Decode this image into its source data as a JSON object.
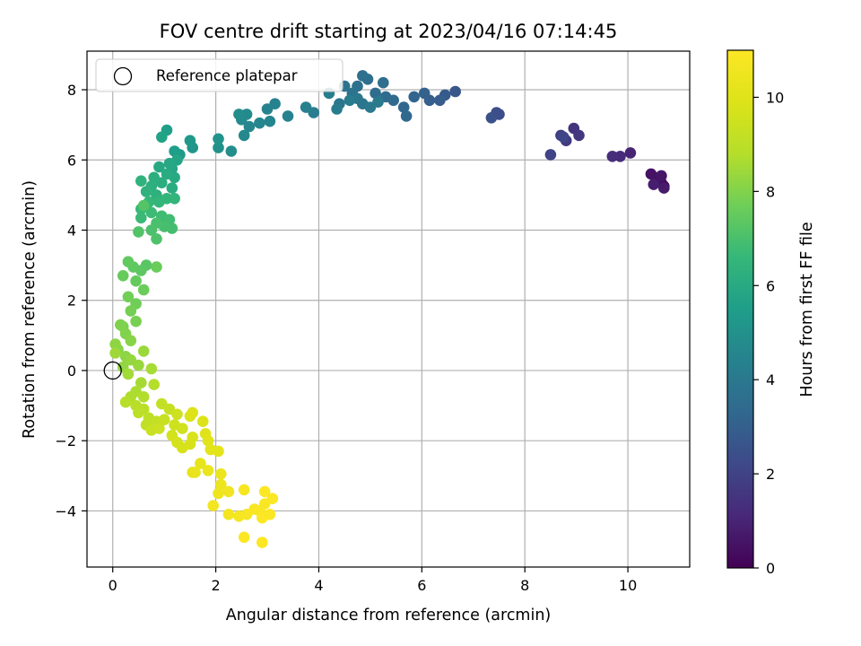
{
  "chart_data": {
    "type": "scatter",
    "title": "FOV centre drift starting at 2023/04/16 07:14:45",
    "xlabel": "Angular distance from reference (arcmin)",
    "ylabel": "Rotation from reference (arcmin)",
    "xlim": [
      -0.5,
      11.2
    ],
    "ylim": [
      -5.6,
      9.1
    ],
    "xticks": [
      0,
      2,
      4,
      6,
      8,
      10
    ],
    "yticks": [
      -4,
      -2,
      0,
      2,
      4,
      6,
      8
    ],
    "grid": true,
    "colormap": "viridis",
    "colorbar": {
      "label": "Hours from first FF file",
      "range": [
        0,
        11
      ],
      "ticks": [
        0,
        2,
        4,
        6,
        8,
        10
      ]
    },
    "legend": {
      "position": "top-left",
      "entries": [
        "Reference platepar"
      ]
    },
    "reference_point": {
      "x": 0,
      "y": 0
    },
    "points": [
      [
        10.7,
        5.25,
        0.1
      ],
      [
        10.65,
        5.35,
        0.2
      ],
      [
        10.6,
        5.5,
        0.3
      ],
      [
        10.55,
        5.4,
        0.4
      ],
      [
        10.45,
        5.6,
        0.5
      ],
      [
        10.65,
        5.55,
        0.6
      ],
      [
        10.7,
        5.2,
        0.7
      ],
      [
        10.5,
        5.3,
        0.8
      ],
      [
        10.05,
        6.2,
        1.0
      ],
      [
        9.85,
        6.1,
        1.2
      ],
      [
        9.7,
        6.1,
        1.3
      ],
      [
        8.95,
        6.9,
        1.5
      ],
      [
        9.05,
        6.7,
        1.6
      ],
      [
        8.8,
        6.55,
        1.7
      ],
      [
        8.7,
        6.7,
        1.8
      ],
      [
        8.5,
        6.15,
        2.0
      ],
      [
        8.75,
        6.65,
        2.1
      ],
      [
        7.5,
        7.3,
        2.3
      ],
      [
        7.45,
        7.35,
        2.4
      ],
      [
        7.35,
        7.2,
        2.5
      ],
      [
        6.65,
        7.95,
        2.7
      ],
      [
        6.45,
        7.85,
        2.8
      ],
      [
        6.35,
        7.7,
        2.9
      ],
      [
        6.15,
        7.7,
        3.0
      ],
      [
        6.05,
        7.9,
        3.1
      ],
      [
        5.85,
        7.8,
        3.2
      ],
      [
        5.7,
        7.25,
        3.3
      ],
      [
        5.65,
        7.5,
        3.35
      ],
      [
        5.45,
        7.7,
        3.4
      ],
      [
        5.3,
        7.8,
        3.45
      ],
      [
        5.1,
        7.9,
        3.5
      ],
      [
        5.25,
        8.2,
        3.55
      ],
      [
        4.95,
        8.3,
        3.6
      ],
      [
        4.85,
        8.4,
        3.65
      ],
      [
        4.75,
        8.1,
        3.7
      ],
      [
        4.65,
        7.9,
        3.75
      ],
      [
        4.5,
        8.1,
        3.8
      ],
      [
        4.4,
        7.6,
        3.85
      ],
      [
        4.85,
        7.6,
        3.9
      ],
      [
        4.75,
        7.75,
        3.95
      ],
      [
        5.0,
        7.5,
        4.0
      ],
      [
        5.15,
        7.65,
        4.05
      ],
      [
        4.6,
        7.7,
        4.1
      ],
      [
        4.35,
        7.45,
        4.15
      ],
      [
        4.2,
        7.9,
        4.2
      ],
      [
        3.9,
        7.35,
        4.25
      ],
      [
        3.75,
        7.5,
        4.3
      ],
      [
        3.4,
        7.25,
        4.35
      ],
      [
        3.15,
        7.6,
        4.4
      ],
      [
        3.0,
        7.45,
        4.45
      ],
      [
        3.05,
        7.1,
        4.5
      ],
      [
        2.85,
        7.05,
        4.55
      ],
      [
        2.65,
        6.95,
        4.6
      ],
      [
        2.55,
        6.7,
        4.65
      ],
      [
        2.5,
        7.15,
        4.7
      ],
      [
        2.6,
        7.3,
        4.75
      ],
      [
        2.45,
        7.3,
        4.8
      ],
      [
        2.3,
        6.25,
        4.9
      ],
      [
        2.05,
        6.35,
        5.0
      ],
      [
        2.05,
        6.6,
        5.1
      ],
      [
        1.55,
        6.35,
        5.2
      ],
      [
        1.5,
        6.55,
        5.3
      ],
      [
        1.3,
        6.15,
        5.4
      ],
      [
        1.2,
        6.25,
        5.5
      ],
      [
        1.05,
        6.85,
        5.6
      ],
      [
        0.95,
        6.65,
        5.7
      ],
      [
        1.25,
        6.0,
        5.8
      ],
      [
        1.15,
        5.75,
        5.85
      ],
      [
        1.1,
        5.9,
        5.9
      ],
      [
        0.9,
        5.8,
        5.95
      ],
      [
        1.2,
        5.5,
        6.0
      ],
      [
        1.05,
        5.6,
        6.05
      ],
      [
        1.15,
        5.2,
        6.1
      ],
      [
        0.95,
        5.35,
        6.15
      ],
      [
        0.8,
        5.5,
        6.2
      ],
      [
        0.75,
        5.25,
        6.25
      ],
      [
        0.85,
        5.0,
        6.3
      ],
      [
        0.65,
        5.1,
        6.35
      ],
      [
        0.55,
        5.4,
        6.4
      ],
      [
        1.2,
        4.9,
        6.45
      ],
      [
        1.05,
        4.9,
        6.5
      ],
      [
        0.9,
        4.8,
        6.55
      ],
      [
        0.7,
        4.8,
        6.6
      ],
      [
        0.55,
        4.6,
        6.65
      ],
      [
        0.55,
        4.35,
        6.7
      ],
      [
        0.75,
        4.5,
        6.75
      ],
      [
        0.95,
        4.4,
        6.8
      ],
      [
        1.1,
        4.3,
        6.85
      ],
      [
        1.15,
        4.05,
        6.9
      ],
      [
        1.0,
        4.1,
        6.95
      ],
      [
        0.85,
        4.2,
        7.0
      ],
      [
        0.75,
        4.0,
        7.05
      ],
      [
        0.85,
        3.75,
        7.1
      ],
      [
        0.5,
        3.95,
        7.15
      ],
      [
        0.6,
        4.7,
        7.2
      ],
      [
        0.65,
        3.0,
        7.3
      ],
      [
        0.55,
        2.85,
        7.35
      ],
      [
        0.4,
        2.95,
        7.4
      ],
      [
        0.3,
        3.1,
        7.45
      ],
      [
        0.45,
        2.55,
        7.5
      ],
      [
        0.2,
        2.7,
        7.55
      ],
      [
        0.85,
        2.95,
        7.6
      ],
      [
        0.6,
        2.3,
        7.65
      ],
      [
        0.45,
        1.9,
        7.7
      ],
      [
        0.3,
        2.1,
        7.75
      ],
      [
        0.35,
        1.7,
        7.8
      ],
      [
        0.45,
        1.4,
        7.85
      ],
      [
        0.2,
        1.25,
        7.9
      ],
      [
        0.15,
        1.3,
        7.95
      ],
      [
        0.25,
        1.05,
        8.0
      ],
      [
        0.1,
        0.6,
        8.05
      ],
      [
        0.35,
        0.85,
        8.1
      ],
      [
        0.25,
        0.4,
        8.15
      ],
      [
        0.05,
        0.75,
        8.2
      ],
      [
        0.2,
        0.1,
        8.25
      ],
      [
        0.35,
        0.3,
        8.3
      ],
      [
        0.5,
        0.15,
        8.35
      ],
      [
        0.6,
        0.55,
        8.4
      ],
      [
        0.05,
        0.5,
        8.45
      ],
      [
        0.3,
        -0.1,
        8.5
      ],
      [
        0.55,
        -0.35,
        8.55
      ],
      [
        0.75,
        0.05,
        8.6
      ],
      [
        0.45,
        -0.6,
        8.65
      ],
      [
        0.35,
        -0.75,
        8.7
      ],
      [
        0.6,
        -0.75,
        8.75
      ],
      [
        0.8,
        -0.4,
        8.8
      ],
      [
        0.25,
        -0.9,
        8.85
      ],
      [
        0.45,
        -1.0,
        8.9
      ],
      [
        0.6,
        -1.1,
        8.95
      ],
      [
        0.5,
        -1.2,
        9.0
      ],
      [
        0.7,
        -1.35,
        9.05
      ],
      [
        0.65,
        -1.55,
        9.1
      ],
      [
        0.85,
        -1.45,
        9.15
      ],
      [
        0.95,
        -0.95,
        9.2
      ],
      [
        1.1,
        -1.1,
        9.25
      ],
      [
        1.0,
        -1.4,
        9.3
      ],
      [
        0.75,
        -1.7,
        9.35
      ],
      [
        0.9,
        -1.65,
        9.4
      ],
      [
        1.25,
        -1.25,
        9.45
      ],
      [
        1.2,
        -1.55,
        9.5
      ],
      [
        1.35,
        -1.65,
        9.55
      ],
      [
        1.15,
        -1.85,
        9.6
      ],
      [
        1.25,
        -2.05,
        9.65
      ],
      [
        1.35,
        -2.2,
        9.7
      ],
      [
        1.5,
        -2.1,
        9.75
      ],
      [
        1.55,
        -1.9,
        9.8
      ],
      [
        1.5,
        -1.3,
        9.85
      ],
      [
        1.55,
        -1.2,
        9.9
      ],
      [
        1.75,
        -1.45,
        9.95
      ],
      [
        1.8,
        -1.8,
        10.0
      ],
      [
        1.85,
        -2.0,
        10.05
      ],
      [
        1.9,
        -2.25,
        10.1
      ],
      [
        2.05,
        -2.3,
        10.15
      ],
      [
        1.7,
        -2.65,
        10.2
      ],
      [
        1.55,
        -2.9,
        10.25
      ],
      [
        1.6,
        -2.9,
        10.3
      ],
      [
        1.85,
        -2.85,
        10.35
      ],
      [
        2.1,
        -2.95,
        10.4
      ],
      [
        2.1,
        -3.25,
        10.45
      ],
      [
        2.05,
        -3.5,
        10.5
      ],
      [
        2.25,
        -3.45,
        10.55
      ],
      [
        1.95,
        -3.85,
        10.6
      ],
      [
        2.25,
        -4.1,
        10.65
      ],
      [
        2.45,
        -4.15,
        10.7
      ],
      [
        2.55,
        -3.4,
        10.75
      ],
      [
        2.6,
        -4.1,
        10.8
      ],
      [
        2.75,
        -3.95,
        10.85
      ],
      [
        2.85,
        -4.0,
        10.9
      ],
      [
        2.95,
        -3.8,
        10.9
      ],
      [
        3.1,
        -3.65,
        10.95
      ],
      [
        2.95,
        -3.45,
        10.95
      ],
      [
        3.05,
        -4.1,
        10.95
      ],
      [
        2.9,
        -4.2,
        10.95
      ],
      [
        2.55,
        -4.75,
        10.95
      ],
      [
        2.9,
        -4.9,
        10.95
      ]
    ]
  }
}
